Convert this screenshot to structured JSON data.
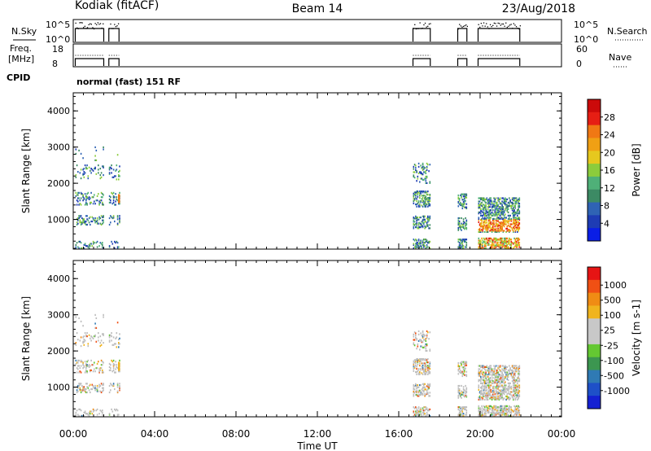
{
  "header": {
    "site": "Kodiak (fitACF)",
    "beam": "Beam 14",
    "date": "23/Aug/2018"
  },
  "strips": {
    "nsky_label": "N.Sky",
    "nsky_ticks": [
      "10^5",
      "10^0"
    ],
    "nsearch_label": "N.Search",
    "nsearch_ticks": [
      "10^5",
      "10^0"
    ],
    "freq_label_1": "Freq.",
    "freq_label_2": "[MHz]",
    "freq_ticks": [
      "18",
      "8"
    ],
    "nave_label": "Nave",
    "nave_ticks": [
      "60",
      "0"
    ],
    "cpid_label": "CPID",
    "cpid_text": "normal (fast) 151 RF"
  },
  "colors": {
    "power_scale": [
      "#0a1ee6",
      "#1e3cb4",
      "#2f63b4",
      "#3c8a64",
      "#4fb078",
      "#8ccc3c",
      "#e6c81e",
      "#f0a014",
      "#f07814",
      "#e61e14",
      "#cc0a0a"
    ],
    "velocity_scale": [
      "#e61414",
      "#f05014",
      "#f08c14",
      "#f0b41e",
      "#c8c8c8",
      "#c8c8c8",
      "#64c832",
      "#3c9650",
      "#2f7ab4",
      "#1e50c8",
      "#1420d2"
    ],
    "ground_scatter": "#bebebe"
  },
  "chart_data": [
    {
      "type": "heatmap",
      "title": "Power",
      "ylabel": "Slant Range [km]",
      "xlabel": "",
      "x_ticks": [
        "00:00",
        "04:00",
        "08:00",
        "12:00",
        "16:00",
        "20:00",
        "00:00"
      ],
      "xlim_hours": [
        0,
        24
      ],
      "ylim": [
        180,
        4500
      ],
      "y_ticks": [
        1000,
        2000,
        3000,
        4000
      ],
      "colorbar_label": "Power [dB]",
      "colorbar_ticks": [
        4,
        8,
        12,
        16,
        20,
        24,
        28
      ],
      "colorbar_range": [
        0,
        32
      ],
      "activity_blocks_hours": [
        [
          0.1,
          1.5
        ],
        [
          1.75,
          2.25
        ],
        [
          16.7,
          17.55
        ],
        [
          18.9,
          19.35
        ],
        [
          19.9,
          21.95
        ]
      ]
    },
    {
      "type": "heatmap",
      "title": "Velocity",
      "ylabel": "Slant Range [km]",
      "xlabel": "Time UT",
      "x_ticks": [
        "00:00",
        "04:00",
        "08:00",
        "12:00",
        "16:00",
        "20:00",
        "00:00"
      ],
      "xlim_hours": [
        0,
        24
      ],
      "ylim": [
        180,
        4500
      ],
      "y_ticks": [
        1000,
        2000,
        3000,
        4000
      ],
      "colorbar_label": "Velocity [m s-1]",
      "colorbar_ticks": [
        "-1000",
        "-500",
        "-100",
        "-25",
        "25",
        "100",
        "500",
        "1000"
      ],
      "activity_blocks_hours": [
        [
          0.1,
          1.5
        ],
        [
          1.75,
          2.25
        ],
        [
          16.7,
          17.55
        ],
        [
          18.9,
          19.35
        ],
        [
          19.9,
          21.95
        ]
      ]
    }
  ]
}
